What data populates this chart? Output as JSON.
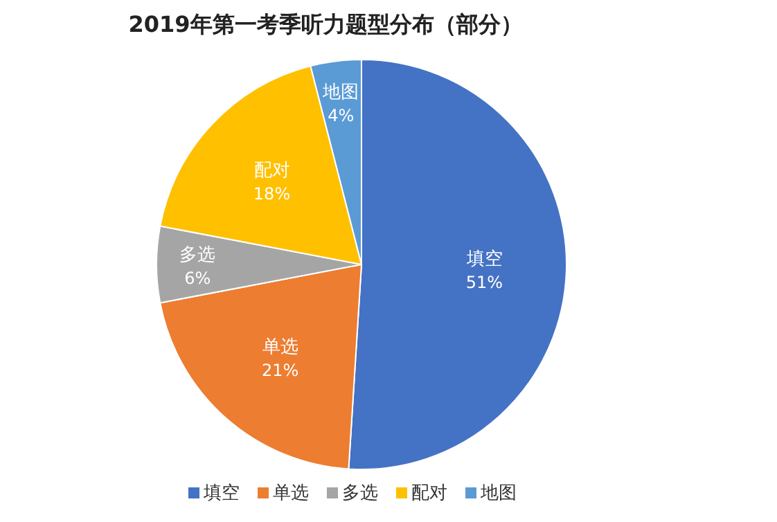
{
  "chart_data": {
    "type": "pie",
    "title": "2019年第一考季听力题型分布（部分）",
    "categories": [
      "填空",
      "单选",
      "多选",
      "配对",
      "地图"
    ],
    "values": [
      51,
      21,
      6,
      18,
      4
    ],
    "colors": [
      "#4472c4",
      "#ed7d31",
      "#a5a5a5",
      "#ffc000",
      "#5b9bd5"
    ],
    "value_labels": [
      "51%",
      "21%",
      "6%",
      "18%",
      "4%"
    ],
    "legend": "bottom"
  }
}
